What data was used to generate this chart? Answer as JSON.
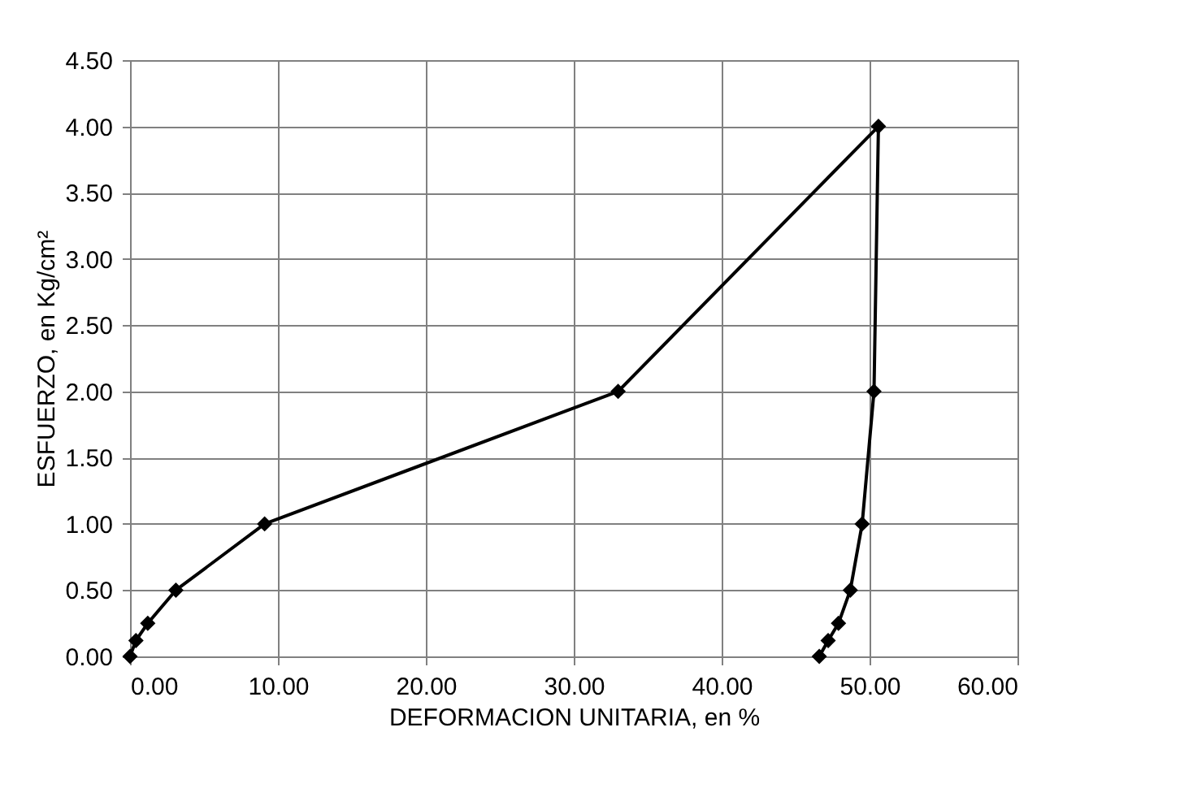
{
  "chart_data": {
    "type": "line",
    "xlabel": "DEFORMACION UNITARIA, en %",
    "ylabel": "ESFUERZO, en Kg/cm²",
    "series": [
      {
        "color": "#000000",
        "x": [
          0.0,
          0.4,
          1.2,
          3.1,
          9.1,
          33.0,
          50.6,
          50.3,
          49.5,
          48.7,
          47.9,
          47.2,
          46.6
        ],
        "values": [
          0,
          0.12,
          0.25,
          0.5,
          1.0,
          2.0,
          4.0,
          2.0,
          1.0,
          0.5,
          0.25,
          0.12,
          0
        ]
      }
    ],
    "xlim": [
      0,
      60
    ],
    "xticks": [
      {
        "value": 0,
        "label": "0.00"
      },
      {
        "value": 10,
        "label": "10.00"
      },
      {
        "value": 20,
        "label": "20.00"
      },
      {
        "value": 30,
        "label": "30.00"
      },
      {
        "value": 40,
        "label": "40.00"
      },
      {
        "value": 50,
        "label": "50.00"
      },
      {
        "value": 60,
        "label": "60.00"
      }
    ],
    "ylim": [
      0,
      4.5
    ],
    "yticks": [
      {
        "value": 0,
        "label": "0.00"
      },
      {
        "value": 0.5,
        "label": "0.50"
      },
      {
        "value": 1,
        "label": "1.00"
      },
      {
        "value": 1.5,
        "label": "1.50"
      },
      {
        "value": 2,
        "label": "2.00"
      },
      {
        "value": 2.5,
        "label": "2.50"
      },
      {
        "value": 3,
        "label": "3.00"
      },
      {
        "value": 3.5,
        "label": "3.50"
      },
      {
        "value": 4,
        "label": "4.00"
      },
      {
        "value": 4.5,
        "label": "4.50"
      }
    ],
    "grid": true,
    "marker": "diamond",
    "line_style": "solid"
  }
}
